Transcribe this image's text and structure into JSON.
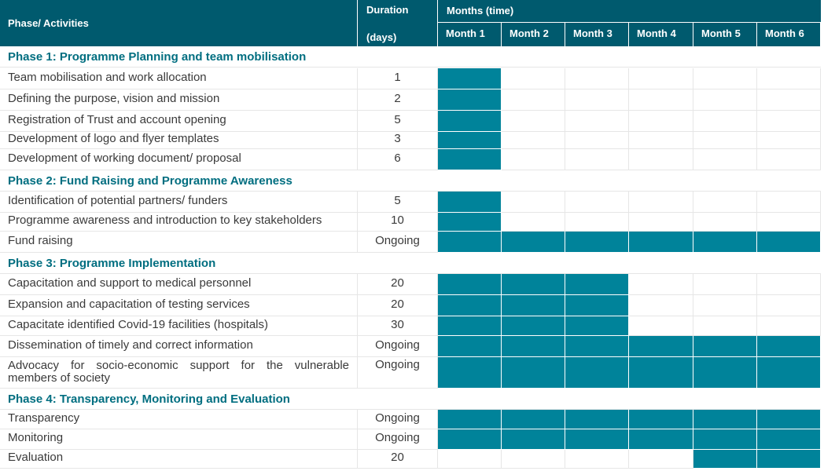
{
  "header": {
    "phase_col": "Phase/ Activities",
    "duration_top": "Duration",
    "duration_bottom": "(days)",
    "months_title": "Months (time)",
    "months": [
      "Month 1",
      "Month 2",
      "Month 3",
      "Month 4",
      "Month 5",
      "Month 6"
    ]
  },
  "phases": [
    {
      "title": "Phase 1: Programme Planning and team mobilisation",
      "activities": [
        {
          "name": "Team mobilisation and work allocation",
          "duration": "1",
          "months": [
            1
          ]
        },
        {
          "name": "Defining the purpose, vision and mission",
          "duration": "2",
          "months": [
            1
          ]
        },
        {
          "name": "Registration of Trust and account opening",
          "duration": "5",
          "months": [
            1
          ]
        },
        {
          "name": "Development of logo and flyer templates",
          "duration": "3",
          "months": [
            1
          ]
        },
        {
          "name": "Development of working document/ proposal",
          "duration": "6",
          "months": [
            1
          ]
        }
      ]
    },
    {
      "title": "Phase 2: Fund Raising and Programme Awareness",
      "activities": [
        {
          "name": "Identification of potential partners/ funders",
          "duration": "5",
          "months": [
            1
          ]
        },
        {
          "name": "Programme awareness and introduction to key stakeholders",
          "duration": "10",
          "months": [
            1
          ]
        },
        {
          "name": "Fund raising",
          "duration": "Ongoing",
          "months": [
            1,
            2,
            3,
            4,
            5,
            6
          ]
        }
      ]
    },
    {
      "title": "Phase 3: Programme Implementation",
      "activities": [
        {
          "name": "Capacitation and support to medical personnel",
          "duration": "20",
          "months": [
            1,
            2,
            3
          ]
        },
        {
          "name": "Expansion and capacitation of testing services",
          "duration": "20",
          "months": [
            1,
            2,
            3
          ]
        },
        {
          "name": "Capacitate identified Covid-19 facilities (hospitals)",
          "duration": "30",
          "months": [
            1,
            2,
            3
          ]
        },
        {
          "name": "Dissemination of timely and correct information",
          "duration": "Ongoing",
          "months": [
            1,
            2,
            3,
            4,
            5,
            6
          ]
        },
        {
          "name": "Advocacy for socio-economic support for the vulnerable members of society",
          "duration": "Ongoing",
          "months": [
            1,
            2,
            3,
            4,
            5,
            6
          ]
        }
      ]
    },
    {
      "title": "Phase 4: Transparency, Monitoring and Evaluation",
      "activities": [
        {
          "name": "Transparency",
          "duration": "Ongoing",
          "months": [
            1,
            2,
            3,
            4,
            5,
            6
          ]
        },
        {
          "name": "Monitoring",
          "duration": "Ongoing",
          "months": [
            1,
            2,
            3,
            4,
            5,
            6
          ]
        },
        {
          "name": "Evaluation",
          "duration": "20",
          "months": [
            5,
            6
          ]
        }
      ]
    }
  ],
  "colors": {
    "header_bg": "#005a6e",
    "bar": "#00839a",
    "phase_text": "#006e80"
  }
}
